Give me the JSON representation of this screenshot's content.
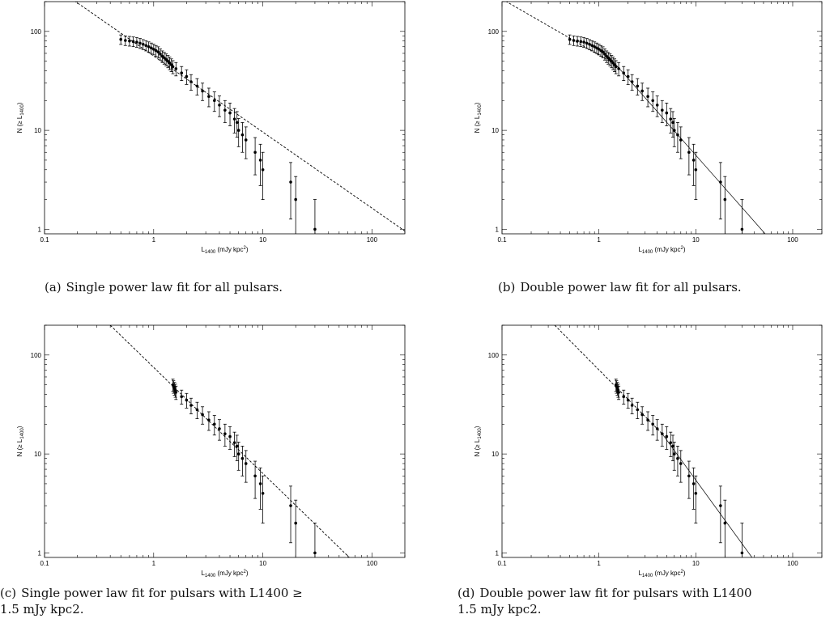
{
  "chart_data": [
    {
      "id": "a",
      "type": "scatter",
      "xscale": "log",
      "yscale": "log",
      "xlim": [
        0.1,
        200
      ],
      "ylim": [
        0.9,
        200
      ],
      "xticks": [
        0.1,
        1,
        10,
        100
      ],
      "xtick_labels": [
        "0.1",
        "1",
        "10",
        "100"
      ],
      "yticks": [
        1,
        10,
        100
      ],
      "ytick_labels": [
        "1",
        "10",
        "100"
      ],
      "xlabel": "L1400 (mJy kpc2)",
      "ylabel": "N (≥ L1400)",
      "caption_label": "(a)",
      "caption": "Single power law fit for all pulsars.",
      "points": [
        [
          0.5,
          83
        ],
        [
          0.55,
          81
        ],
        [
          0.6,
          80
        ],
        [
          0.65,
          79
        ],
        [
          0.7,
          78
        ],
        [
          0.75,
          76
        ],
        [
          0.8,
          74
        ],
        [
          0.85,
          72
        ],
        [
          0.9,
          70
        ],
        [
          0.95,
          68
        ],
        [
          1.0,
          66
        ],
        [
          1.05,
          64
        ],
        [
          1.1,
          62
        ],
        [
          1.15,
          59
        ],
        [
          1.2,
          56
        ],
        [
          1.25,
          54
        ],
        [
          1.3,
          52
        ],
        [
          1.35,
          50
        ],
        [
          1.4,
          48
        ],
        [
          1.45,
          46
        ],
        [
          1.5,
          44
        ],
        [
          1.6,
          42
        ],
        [
          1.8,
          38
        ],
        [
          2.0,
          35
        ],
        [
          2.2,
          31
        ],
        [
          2.5,
          28
        ],
        [
          2.8,
          25
        ],
        [
          3.2,
          22
        ],
        [
          3.6,
          20
        ],
        [
          4.0,
          18
        ],
        [
          4.5,
          16
        ],
        [
          5.0,
          15
        ],
        [
          5.5,
          13
        ],
        [
          5.8,
          12
        ],
        [
          6.0,
          10
        ],
        [
          6.5,
          9
        ],
        [
          7.0,
          8
        ],
        [
          8.5,
          6
        ],
        [
          9.5,
          5
        ],
        [
          10,
          4
        ],
        [
          18,
          3
        ],
        [
          20,
          2
        ],
        [
          30,
          1
        ]
      ],
      "fits": [
        {
          "style": "dashed",
          "x": [
            0.1,
            200
          ],
          "y": [
            331,
            0.96
          ]
        }
      ]
    },
    {
      "id": "b",
      "type": "scatter",
      "xscale": "log",
      "yscale": "log",
      "xlim": [
        0.1,
        200
      ],
      "ylim": [
        0.9,
        200
      ],
      "xticks": [
        0.1,
        1,
        10,
        100
      ],
      "xtick_labels": [
        "0.1",
        "1",
        "10",
        "100"
      ],
      "yticks": [
        1,
        10,
        100
      ],
      "ytick_labels": [
        "1",
        "10",
        "100"
      ],
      "xlabel": "L1400 (mJy kpc2)",
      "ylabel": "N (≥ L1400)",
      "caption_label": "(b)",
      "caption": "Double power law fit for all pulsars.",
      "points": [
        [
          0.5,
          83
        ],
        [
          0.55,
          81
        ],
        [
          0.6,
          80
        ],
        [
          0.65,
          79
        ],
        [
          0.7,
          78
        ],
        [
          0.75,
          76
        ],
        [
          0.8,
          74
        ],
        [
          0.85,
          72
        ],
        [
          0.9,
          70
        ],
        [
          0.95,
          68
        ],
        [
          1.0,
          66
        ],
        [
          1.05,
          64
        ],
        [
          1.1,
          62
        ],
        [
          1.15,
          59
        ],
        [
          1.2,
          56
        ],
        [
          1.25,
          54
        ],
        [
          1.3,
          52
        ],
        [
          1.35,
          50
        ],
        [
          1.4,
          48
        ],
        [
          1.45,
          46
        ],
        [
          1.5,
          44
        ],
        [
          1.6,
          42
        ],
        [
          1.8,
          38
        ],
        [
          2.0,
          35
        ],
        [
          2.2,
          31
        ],
        [
          2.5,
          28
        ],
        [
          2.8,
          25
        ],
        [
          3.2,
          22
        ],
        [
          3.6,
          20
        ],
        [
          4.0,
          18
        ],
        [
          4.5,
          16
        ],
        [
          5.0,
          15
        ],
        [
          5.5,
          13
        ],
        [
          5.8,
          12
        ],
        [
          6.0,
          10
        ],
        [
          6.5,
          9
        ],
        [
          7.0,
          8
        ],
        [
          8.5,
          6
        ],
        [
          9.5,
          5
        ],
        [
          10,
          4
        ],
        [
          18,
          3
        ],
        [
          20,
          2
        ],
        [
          30,
          1
        ]
      ],
      "fits": [
        {
          "style": "dashed",
          "x": [
            0.1,
            1.5
          ],
          "y": [
            212,
            46
          ]
        },
        {
          "style": "solid",
          "x": [
            1.5,
            52
          ],
          "y": [
            46,
            0.9
          ]
        }
      ]
    },
    {
      "id": "c",
      "type": "scatter",
      "xscale": "log",
      "yscale": "log",
      "xlim": [
        0.1,
        200
      ],
      "ylim": [
        0.9,
        200
      ],
      "xticks": [
        0.1,
        1,
        10,
        100
      ],
      "xtick_labels": [
        "0.1",
        "1",
        "10",
        "100"
      ],
      "yticks": [
        1,
        10,
        100
      ],
      "ytick_labels": [
        "1",
        "10",
        "100"
      ],
      "xlabel": "L1400 (mJy kpc2)",
      "ylabel": "N (≥ L1400)",
      "caption_label": "(c)",
      "caption": "Single power law fit for pulsars with L1400 ≥",
      "caption_line2": "1.5 mJy kpc2.",
      "points": [
        [
          1.5,
          50
        ],
        [
          1.52,
          48
        ],
        [
          1.55,
          46
        ],
        [
          1.58,
          44
        ],
        [
          1.6,
          42
        ],
        [
          1.8,
          38
        ],
        [
          2.0,
          35
        ],
        [
          2.2,
          31
        ],
        [
          2.5,
          28
        ],
        [
          2.8,
          25
        ],
        [
          3.2,
          22
        ],
        [
          3.6,
          20
        ],
        [
          4.0,
          18
        ],
        [
          4.5,
          16
        ],
        [
          5.0,
          15
        ],
        [
          5.5,
          13
        ],
        [
          5.8,
          12
        ],
        [
          6.0,
          10
        ],
        [
          6.5,
          9
        ],
        [
          7.0,
          8
        ],
        [
          8.5,
          6
        ],
        [
          9.5,
          5
        ],
        [
          10,
          4
        ],
        [
          18,
          3
        ],
        [
          20,
          2
        ],
        [
          30,
          1
        ]
      ],
      "fits": [
        {
          "style": "dashed",
          "x": [
            0.4,
            62
          ],
          "y": [
            200,
            0.9
          ]
        }
      ]
    },
    {
      "id": "d",
      "type": "scatter",
      "xscale": "log",
      "yscale": "log",
      "xlim": [
        0.1,
        200
      ],
      "ylim": [
        0.9,
        200
      ],
      "xticks": [
        0.1,
        1,
        10,
        100
      ],
      "xtick_labels": [
        "0.1",
        "1",
        "10",
        "100"
      ],
      "yticks": [
        1,
        10,
        100
      ],
      "ytick_labels": [
        "1",
        "10",
        "100"
      ],
      "xlabel": "L1400 (mJy kpc2)",
      "ylabel": "N (≥ L1400)",
      "caption_label": "(d)",
      "caption": "Double power law fit for pulsars with L1400",
      "caption_line2": "1.5 mJy kpc2.",
      "points": [
        [
          1.5,
          50
        ],
        [
          1.52,
          48
        ],
        [
          1.55,
          46
        ],
        [
          1.58,
          44
        ],
        [
          1.6,
          42
        ],
        [
          1.8,
          38
        ],
        [
          2.0,
          35
        ],
        [
          2.2,
          31
        ],
        [
          2.5,
          28
        ],
        [
          2.8,
          25
        ],
        [
          3.2,
          22
        ],
        [
          3.6,
          20
        ],
        [
          4.0,
          18
        ],
        [
          4.5,
          16
        ],
        [
          5.0,
          15
        ],
        [
          5.5,
          13
        ],
        [
          5.8,
          12
        ],
        [
          6.0,
          10
        ],
        [
          6.5,
          9
        ],
        [
          7.0,
          8
        ],
        [
          8.5,
          6
        ],
        [
          9.5,
          5
        ],
        [
          10,
          4
        ],
        [
          18,
          3
        ],
        [
          20,
          2
        ],
        [
          30,
          1
        ]
      ],
      "fits": [
        {
          "style": "dashed",
          "x": [
            0.35,
            4.5
          ],
          "y": [
            200,
            16
          ]
        },
        {
          "style": "solid",
          "x": [
            4.5,
            38
          ],
          "y": [
            16,
            0.9
          ]
        }
      ]
    }
  ]
}
